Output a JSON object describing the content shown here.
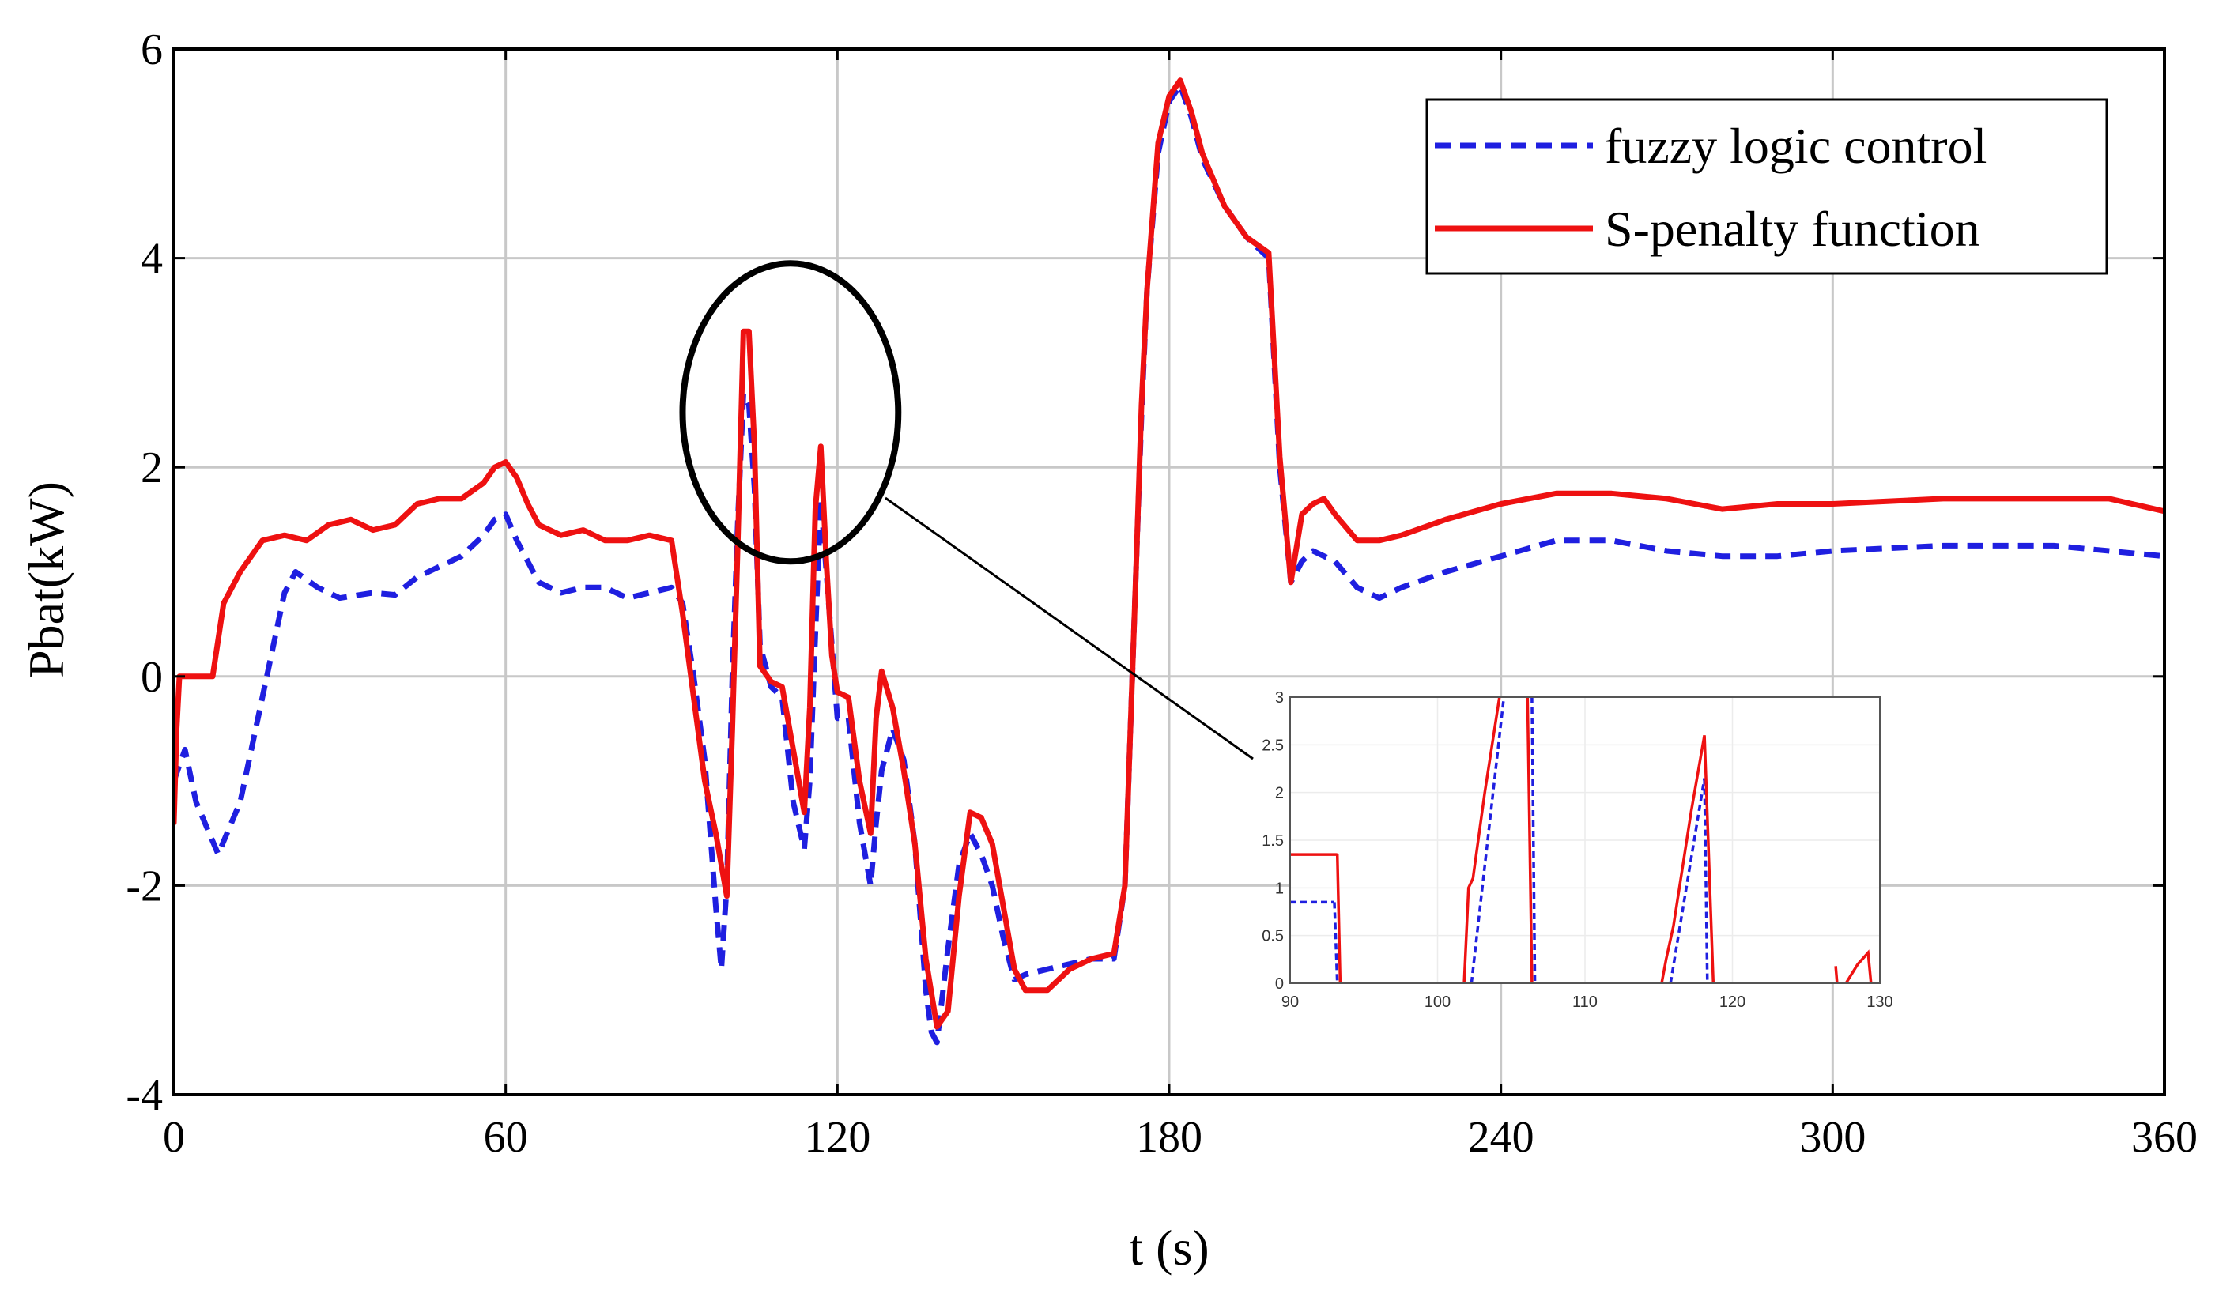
{
  "chart_data": {
    "type": "line",
    "title": "",
    "xlabel": "t (s)",
    "ylabel": "Pbat(kW)",
    "xlim": [
      0,
      360
    ],
    "ylim": [
      -4,
      6
    ],
    "xticks": [
      0,
      60,
      120,
      180,
      240,
      300,
      360
    ],
    "yticks": [
      -4,
      -2,
      0,
      2,
      4,
      6
    ],
    "grid": true,
    "legend_position": "top-right",
    "series": [
      {
        "name": "fuzzy logic control",
        "color": "#1f1fe0",
        "style": "dashed",
        "x": [
          0,
          2,
          4,
          8,
          12,
          16,
          20,
          22,
          26,
          30,
          36,
          40,
          44,
          48,
          52,
          56,
          58,
          60,
          62,
          66,
          70,
          74,
          78,
          82,
          86,
          90,
          92,
          94,
          96,
          98,
          99,
          100,
          101,
          102,
          103,
          104,
          105,
          106,
          108,
          110,
          112,
          114,
          115,
          116,
          117,
          118,
          120,
          122,
          124,
          126,
          127,
          128,
          130,
          132,
          134,
          136,
          137,
          138,
          140,
          142,
          144,
          146,
          148,
          150,
          152,
          154,
          158,
          162,
          166,
          170,
          172,
          174,
          175,
          176,
          178,
          180,
          182,
          184,
          186,
          190,
          194,
          198,
          200,
          202,
          204,
          206,
          210,
          214,
          218,
          222,
          230,
          240,
          250,
          260,
          270,
          280,
          290,
          300,
          320,
          340,
          360
        ],
        "y": [
          -1.0,
          -0.7,
          -1.2,
          -1.7,
          -1.2,
          -0.2,
          0.8,
          1.0,
          0.85,
          0.75,
          0.8,
          0.78,
          0.95,
          1.05,
          1.15,
          1.35,
          1.5,
          1.55,
          1.3,
          0.9,
          0.8,
          0.85,
          0.85,
          0.75,
          0.8,
          0.85,
          0.7,
          0.0,
          -0.8,
          -2.2,
          -2.8,
          -2.0,
          0.0,
          1.5,
          2.7,
          2.6,
          1.8,
          0.3,
          -0.1,
          -0.2,
          -1.2,
          -1.65,
          -1.0,
          0.4,
          1.7,
          1.0,
          -0.4,
          -0.4,
          -1.4,
          -2.0,
          -1.4,
          -0.9,
          -0.5,
          -0.8,
          -1.6,
          -3.0,
          -3.4,
          -3.5,
          -2.6,
          -1.8,
          -1.5,
          -1.7,
          -2.0,
          -2.5,
          -2.9,
          -2.85,
          -2.8,
          -2.75,
          -2.7,
          -2.7,
          -2.0,
          1.0,
          2.5,
          3.7,
          5.0,
          5.5,
          5.65,
          5.35,
          4.95,
          4.5,
          4.2,
          4.0,
          2.0,
          0.9,
          1.1,
          1.2,
          1.1,
          0.85,
          0.75,
          0.85,
          1.0,
          1.15,
          1.3,
          1.3,
          1.2,
          1.15,
          1.15,
          1.2,
          1.25,
          1.25,
          1.15
        ]
      },
      {
        "name": "S-penalty function",
        "color": "#ee1111",
        "style": "solid",
        "x": [
          0,
          0.5,
          1,
          2,
          5,
          7,
          9,
          12,
          16,
          20,
          24,
          28,
          32,
          36,
          40,
          44,
          48,
          52,
          56,
          58,
          60,
          62,
          64,
          66,
          70,
          74,
          78,
          82,
          86,
          90,
          92,
          94,
          96,
          98,
          100,
          101,
          102,
          103,
          104,
          105,
          106,
          108,
          110,
          112,
          114,
          115,
          116,
          117,
          118,
          119,
          120,
          122,
          124,
          126,
          127,
          128,
          130,
          132,
          134,
          136,
          138,
          140,
          142,
          144,
          146,
          148,
          150,
          152,
          154,
          158,
          162,
          166,
          170,
          172,
          174,
          175,
          176,
          178,
          180,
          182,
          184,
          186,
          190,
          194,
          198,
          200,
          202,
          204,
          206,
          208,
          210,
          214,
          218,
          222,
          230,
          240,
          250,
          260,
          270,
          280,
          290,
          300,
          320,
          340,
          350,
          360
        ],
        "y": [
          -1.4,
          -0.5,
          0.0,
          0.0,
          0.0,
          0.0,
          0.7,
          1.0,
          1.3,
          1.35,
          1.3,
          1.45,
          1.5,
          1.4,
          1.45,
          1.65,
          1.7,
          1.7,
          1.85,
          2.0,
          2.05,
          1.9,
          1.65,
          1.45,
          1.35,
          1.4,
          1.3,
          1.3,
          1.35,
          1.3,
          0.6,
          -0.2,
          -1.0,
          -1.5,
          -2.1,
          -0.5,
          1.3,
          3.3,
          3.3,
          2.2,
          0.1,
          -0.05,
          -0.1,
          -0.7,
          -1.3,
          -0.3,
          1.6,
          2.2,
          1.1,
          0.2,
          -0.15,
          -0.2,
          -1.0,
          -1.5,
          -0.4,
          0.05,
          -0.3,
          -0.9,
          -1.6,
          -2.7,
          -3.35,
          -3.2,
          -2.1,
          -1.3,
          -1.35,
          -1.6,
          -2.2,
          -2.8,
          -3.0,
          -3.0,
          -2.8,
          -2.7,
          -2.65,
          -2.0,
          1.0,
          2.6,
          3.7,
          5.1,
          5.55,
          5.7,
          5.4,
          5.0,
          4.5,
          4.2,
          4.05,
          2.1,
          0.9,
          1.55,
          1.65,
          1.7,
          1.55,
          1.3,
          1.3,
          1.35,
          1.5,
          1.65,
          1.75,
          1.75,
          1.7,
          1.6,
          1.65,
          1.65,
          1.7,
          1.7,
          1.7,
          1.58
        ]
      }
    ],
    "annotations": [
      {
        "type": "ellipse",
        "x_range": [
          92,
          131
        ],
        "y_range": [
          1.1,
          3.95
        ]
      }
    ],
    "inset": {
      "xlim": [
        90,
        130
      ],
      "ylim": [
        0,
        3
      ],
      "xticks": [
        90,
        100,
        110,
        120,
        130
      ],
      "yticks": [
        0,
        0.5,
        1,
        1.5,
        2,
        2.5,
        3
      ],
      "ytick_labels": [
        "0",
        "0.5",
        "1",
        "1.5",
        "2",
        "2.5",
        "3"
      ],
      "series": [
        {
          "name": "fuzzy logic control",
          "color": "#1f1fe0",
          "style": "dashed",
          "segments": [
            {
              "x": [
                90,
                93
              ],
              "y": [
                0.85,
                0.85
              ]
            },
            {
              "x": [
                93,
                93.2
              ],
              "y": [
                0.85,
                0
              ]
            },
            {
              "x": [
                102.3,
                104.5
              ],
              "y": [
                0,
                3.0
              ]
            },
            {
              "x": [
                106.4,
                106.6
              ],
              "y": [
                3.0,
                0
              ]
            },
            {
              "x": [
                115.8,
                118.1
              ],
              "y": [
                0,
                2.15
              ]
            },
            {
              "x": [
                118.1,
                118.3
              ],
              "y": [
                2.15,
                0
              ]
            }
          ]
        },
        {
          "name": "S-penalty function",
          "color": "#ee1111",
          "style": "solid",
          "segments": [
            {
              "x": [
                90,
                93.2
              ],
              "y": [
                1.35,
                1.35
              ]
            },
            {
              "x": [
                93.2,
                93.4
              ],
              "y": [
                1.35,
                0
              ]
            },
            {
              "x": [
                101.8,
                102.1,
                102.4,
                103.2,
                104.2
              ],
              "y": [
                0,
                1.0,
                1.1,
                2.0,
                3.0
              ]
            },
            {
              "x": [
                106.1,
                106.4
              ],
              "y": [
                3.0,
                0
              ]
            },
            {
              "x": [
                115.2,
                115.5,
                116.0,
                117.2,
                118.1,
                118.7
              ],
              "y": [
                0,
                0.25,
                0.6,
                1.8,
                2.6,
                0
              ]
            },
            {
              "x": [
                127.0,
                127.1
              ],
              "y": [
                0.18,
                0
              ]
            },
            {
              "x": [
                127.7,
                128.5,
                129.2,
                129.4
              ],
              "y": [
                0,
                0.2,
                0.32,
                0
              ]
            }
          ]
        }
      ]
    }
  }
}
